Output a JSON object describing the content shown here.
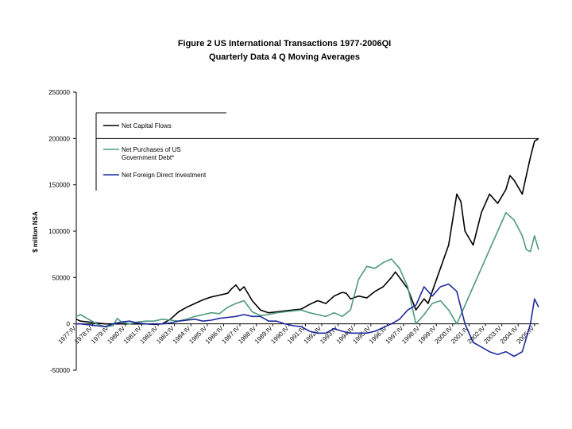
{
  "chart_data": {
    "type": "line",
    "title": "Figure 2 US International Transactions 1977-2006QI",
    "subtitle": "Quarterly Data 4 Q Moving Averages",
    "ylabel": "$ million NSA",
    "xlabel": "",
    "ylim": [
      -50000,
      250000
    ],
    "yticks": [
      "250000",
      "200000",
      "150000",
      "100000",
      "50000",
      "0",
      "-50000"
    ],
    "ytick_values": [
      250000,
      200000,
      150000,
      100000,
      50000,
      0,
      -50000
    ],
    "categories": [
      "1977:IV",
      "1978:IV",
      "1979:IV",
      "1980:IV",
      "1981:IV",
      "1982:IV",
      "1983:IV",
      "1984:IV",
      "1985:IV",
      "1986:IV",
      "1987:IV",
      "1988:IV",
      "1989:IV",
      "1990:IV",
      "1991:IV",
      "1992:IV",
      "1993:IV",
      "1994:IV",
      "1995:IV",
      "1996:IV",
      "1997:IV",
      "1998:IV",
      "1999:IV",
      "2000:IV",
      "2001:IV",
      "2002:IV",
      "2003:IV",
      "2004:IV",
      "2005:IV"
    ],
    "x_range": [
      1977.75,
      2006.0
    ],
    "grid": false,
    "legend_position": "top-left",
    "series": [
      {
        "name": "Net Capital Flows",
        "color": "#000000",
        "x": [
          1977.75,
          1978.0,
          1978.5,
          1979.0,
          1979.5,
          1980.0,
          1980.5,
          1981.0,
          1981.5,
          1982.0,
          1982.5,
          1983.0,
          1983.5,
          1984.0,
          1984.5,
          1985.0,
          1985.5,
          1986.0,
          1986.5,
          1987.0,
          1987.25,
          1987.5,
          1987.75,
          1988.0,
          1988.5,
          1989.0,
          1989.5,
          1990.0,
          1990.5,
          1991.0,
          1991.5,
          1992.0,
          1992.5,
          1993.0,
          1993.5,
          1994.0,
          1994.25,
          1994.5,
          1995.0,
          1995.5,
          1996.0,
          1996.5,
          1997.0,
          1997.25,
          1997.5,
          1998.0,
          1998.5,
          1999.0,
          1999.25,
          1999.5,
          2000.0,
          2000.5,
          2001.0,
          2001.25,
          2001.5,
          2002.0,
          2002.5,
          2003.0,
          2003.5,
          2004.0,
          2004.25,
          2004.5,
          2005.0,
          2005.25,
          2005.5,
          2005.75,
          2006.0
        ],
        "values": [
          5000,
          3000,
          2000,
          1000,
          0,
          0,
          0,
          0,
          0,
          0,
          -500,
          0,
          5000,
          13000,
          18000,
          22000,
          26000,
          29000,
          31000,
          33000,
          38000,
          42000,
          36000,
          40000,
          25000,
          15000,
          12000,
          13000,
          14000,
          15000,
          16000,
          21000,
          25000,
          22000,
          30000,
          34000,
          33000,
          27000,
          30000,
          28000,
          35000,
          40000,
          50000,
          56000,
          50000,
          38000,
          15000,
          27000,
          22000,
          35000,
          60000,
          85000,
          140000,
          132000,
          100000,
          85000,
          120000,
          140000,
          130000,
          145000,
          160000,
          155000,
          140000,
          160000,
          180000,
          197000,
          200000
        ]
      },
      {
        "name": "Net Purchases of US Government Debt*",
        "color": "#4f9a7e",
        "x": [
          1977.75,
          1978.0,
          1978.5,
          1979.0,
          1979.5,
          1980.0,
          1980.25,
          1980.5,
          1981.0,
          1981.5,
          1982.0,
          1982.5,
          1983.0,
          1983.5,
          1984.0,
          1984.5,
          1985.0,
          1985.5,
          1986.0,
          1986.5,
          1987.0,
          1987.5,
          1988.0,
          1988.5,
          1989.0,
          1989.5,
          1990.0,
          1990.5,
          1991.0,
          1991.5,
          1992.0,
          1992.5,
          1993.0,
          1993.5,
          1994.0,
          1994.5,
          1995.0,
          1995.5,
          1996.0,
          1996.5,
          1997.0,
          1997.5,
          1998.0,
          1998.25,
          1998.5,
          1999.0,
          1999.5,
          2000.0,
          2000.5,
          2001.0,
          2001.5,
          2002.0,
          2002.5,
          2003.0,
          2003.5,
          2004.0,
          2004.5,
          2005.0,
          2005.25,
          2005.5,
          2005.75,
          2006.0
        ],
        "values": [
          8000,
          10000,
          5000,
          0,
          -3000,
          -2000,
          6000,
          2000,
          0,
          2000,
          3000,
          3000,
          5000,
          4000,
          3000,
          5000,
          8000,
          10000,
          12000,
          11000,
          18000,
          22000,
          25000,
          13000,
          9000,
          10000,
          12000,
          13000,
          14000,
          15000,
          12000,
          10000,
          8000,
          12000,
          8000,
          15000,
          48000,
          62000,
          60000,
          66000,
          70000,
          60000,
          40000,
          20000,
          0,
          10000,
          22000,
          25000,
          15000,
          0,
          20000,
          40000,
          60000,
          80000,
          100000,
          120000,
          112000,
          95000,
          80000,
          78000,
          95000,
          80000
        ]
      },
      {
        "name": "Net Foreign Direct Investment",
        "color": "#1f2a9e",
        "x": [
          1977.75,
          1978.0,
          1978.5,
          1979.0,
          1979.5,
          1980.0,
          1980.5,
          1981.0,
          1981.5,
          1982.0,
          1982.5,
          1983.0,
          1983.5,
          1984.0,
          1984.5,
          1985.0,
          1985.5,
          1986.0,
          1986.5,
          1987.0,
          1987.5,
          1988.0,
          1988.5,
          1989.0,
          1989.5,
          1990.0,
          1990.5,
          1991.0,
          1991.5,
          1992.0,
          1992.5,
          1993.0,
          1993.5,
          1994.0,
          1994.5,
          1995.0,
          1995.5,
          1996.0,
          1996.5,
          1997.0,
          1997.5,
          1998.0,
          1998.5,
          1999.0,
          1999.5,
          2000.0,
          2000.5,
          2001.0,
          2001.5,
          2002.0,
          2002.5,
          2003.0,
          2003.5,
          2004.0,
          2004.5,
          2005.0,
          2005.5,
          2005.75,
          2006.0
        ],
        "values": [
          0,
          0,
          -1000,
          -2000,
          -3000,
          0,
          2000,
          3000,
          1000,
          0,
          0,
          0,
          1000,
          3000,
          4000,
          5000,
          3000,
          4000,
          6000,
          7000,
          8000,
          10000,
          8000,
          8000,
          3000,
          3000,
          0,
          -2000,
          -3000,
          -8000,
          -10000,
          -10000,
          -5000,
          -8000,
          -10000,
          -10000,
          -10000,
          -8000,
          -4000,
          0,
          5000,
          15000,
          20000,
          40000,
          30000,
          40000,
          43000,
          35000,
          0,
          -20000,
          -25000,
          -30000,
          -33000,
          -30000,
          -35000,
          -30000,
          0,
          27000,
          18000
        ]
      }
    ],
    "legend": [
      {
        "label_lines": [
          "Net Capital Flows"
        ],
        "color": "#000000"
      },
      {
        "label_lines": [
          "Net Purchases of US",
          "Government Debt*"
        ],
        "color": "#4f9a7e"
      },
      {
        "label_lines": [
          "Net Foreign Direct Investment"
        ],
        "color": "#1f2a9e"
      }
    ]
  }
}
